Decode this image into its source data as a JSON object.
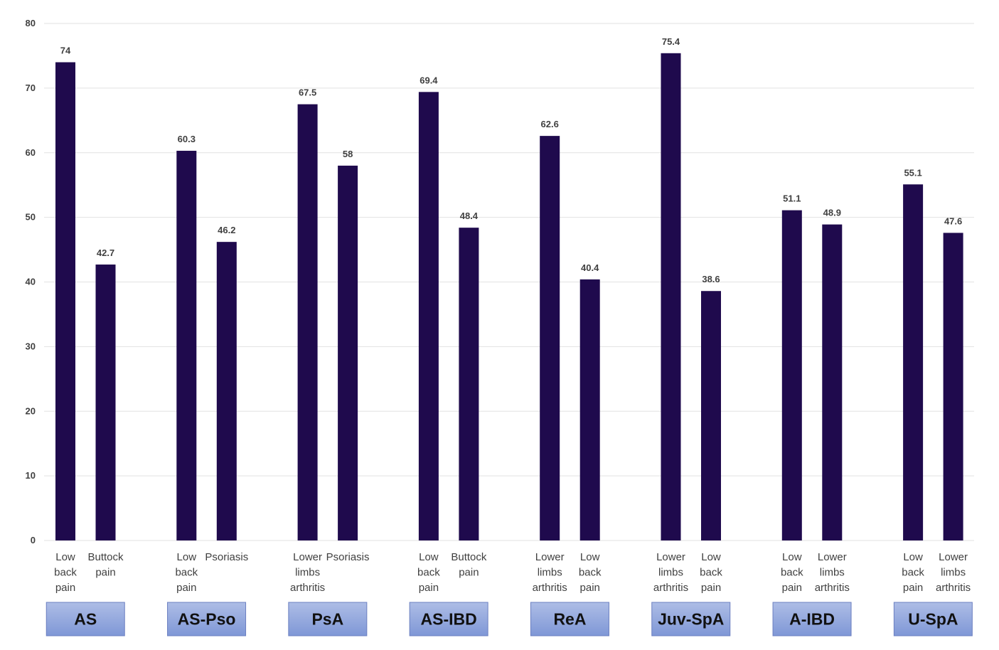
{
  "chart_data": {
    "type": "bar",
    "title": "",
    "xlabel": "",
    "ylabel": "",
    "ylim": [
      0,
      80
    ],
    "yticks": [
      "0",
      "10",
      "20",
      "30",
      "40",
      "50",
      "60",
      "70",
      "80"
    ],
    "grid": true,
    "colors": {
      "bar": "#1f0a4d",
      "grid": "#e2e2e2",
      "group_box_top": "#aebde6",
      "group_box_bottom": "#7f97d6",
      "group_box_border": "#6b7fc0"
    },
    "groups": [
      {
        "name": "AS",
        "bars": [
          {
            "label": [
              "Low",
              "back",
              "pain"
            ],
            "value": 74
          },
          {
            "label": [
              "Buttock",
              "pain"
            ],
            "value": 42.7
          }
        ]
      },
      {
        "name": "AS-Pso",
        "bars": [
          {
            "label": [
              "Low",
              "back",
              "pain"
            ],
            "value": 60.3
          },
          {
            "label": [
              "Psoriasis"
            ],
            "value": 46.2
          }
        ]
      },
      {
        "name": "PsA",
        "bars": [
          {
            "label": [
              "Lower",
              "limbs",
              "arthritis"
            ],
            "value": 67.5
          },
          {
            "label": [
              "Psoriasis"
            ],
            "value": 58
          }
        ]
      },
      {
        "name": "AS-IBD",
        "bars": [
          {
            "label": [
              "Low",
              "back",
              "pain"
            ],
            "value": 69.4
          },
          {
            "label": [
              "Buttock",
              "pain"
            ],
            "value": 48.4
          }
        ]
      },
      {
        "name": "ReA",
        "bars": [
          {
            "label": [
              "Lower",
              "limbs",
              "arthritis"
            ],
            "value": 62.6
          },
          {
            "label": [
              "Low",
              "back",
              "pain"
            ],
            "value": 40.4
          }
        ]
      },
      {
        "name": "Juv-SpA",
        "bars": [
          {
            "label": [
              "Lower",
              "limbs",
              "arthritis"
            ],
            "value": 75.4
          },
          {
            "label": [
              "Low",
              "back",
              "pain"
            ],
            "value": 38.6
          }
        ]
      },
      {
        "name": "A-IBD",
        "bars": [
          {
            "label": [
              "Low",
              "back",
              "pain"
            ],
            "value": 51.1
          },
          {
            "label": [
              "Lower",
              "limbs",
              "arthritis"
            ],
            "value": 48.9
          }
        ]
      },
      {
        "name": "U-SpA",
        "bars": [
          {
            "label": [
              "Low",
              "back",
              "pain"
            ],
            "value": 55.1
          },
          {
            "label": [
              "Lower",
              "limbs",
              "arthritis"
            ],
            "value": 47.6
          }
        ]
      }
    ]
  }
}
